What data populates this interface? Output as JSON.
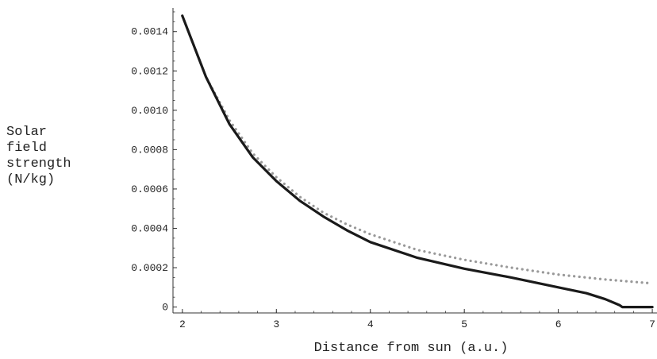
{
  "chart_data": {
    "type": "line",
    "title": "",
    "xlabel": "Distance from sun (a.u.)",
    "ylabel_lines": [
      "Solar",
      "field",
      "strength",
      "(N/kg)"
    ],
    "xlim": [
      1.9,
      7.05
    ],
    "ylim": [
      -3e-05,
      0.00152
    ],
    "x_ticks": [
      2,
      3,
      4,
      5,
      6,
      7
    ],
    "x_tick_labels": [
      "2",
      "3",
      "4",
      "5",
      "6",
      "7"
    ],
    "y_ticks": [
      0,
      0.0002,
      0.0004,
      0.0006,
      0.0008,
      0.001,
      0.0012,
      0.0014
    ],
    "y_tick_labels": [
      "0",
      "0.0002",
      "0.0004",
      "0.0006",
      "0.0008",
      "0.0010",
      "0.0012",
      "0.0014"
    ],
    "grid": false,
    "series": [
      {
        "style": "solid",
        "color": "#1a1a1a",
        "x": [
          2.0,
          2.25,
          2.5,
          2.75,
          3.0,
          3.25,
          3.5,
          3.75,
          4.0,
          4.5,
          5.0,
          5.5,
          6.0,
          6.3,
          6.5,
          6.6,
          6.65,
          6.68,
          6.7,
          7.0
        ],
        "y": [
          0.00148,
          0.00117,
          0.00093,
          0.00076,
          0.00064,
          0.00054,
          0.00046,
          0.00039,
          0.00033,
          0.00025,
          0.000195,
          0.00015,
          0.0001,
          7e-05,
          4e-05,
          2e-05,
          1e-05,
          0.0,
          0.0,
          0.0
        ]
      },
      {
        "style": "dotted",
        "color": "#999999",
        "x": [
          2.0,
          2.25,
          2.5,
          2.75,
          3.0,
          3.25,
          3.5,
          3.75,
          4.0,
          4.5,
          5.0,
          5.5,
          6.0,
          6.5,
          7.0
        ],
        "y": [
          0.00148,
          0.00117,
          0.00095,
          0.00078,
          0.00066,
          0.00056,
          0.00048,
          0.00042,
          0.00037,
          0.00029,
          0.00024,
          0.0002,
          0.000165,
          0.00014,
          0.00012
        ]
      }
    ]
  }
}
